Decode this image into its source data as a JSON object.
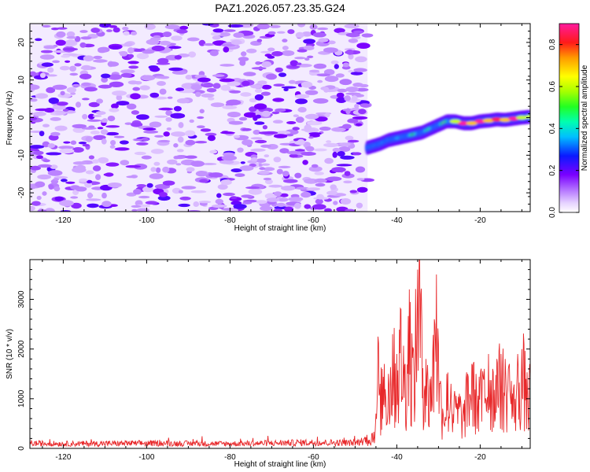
{
  "title": "PAZ1.2026.057.23.35.G24",
  "chart_data": [
    {
      "type": "heatmap",
      "title": "PAZ1.2026.057.23.35.G24",
      "xlabel": "Height of straight line (km)",
      "ylabel": "Frequency (Hz)",
      "xlim": [
        -128,
        -8
      ],
      "ylim": [
        -25,
        25
      ],
      "xticks": [
        -120,
        -100,
        -80,
        -60,
        -40,
        -20
      ],
      "yticks": [
        -20,
        -10,
        0,
        10,
        20
      ],
      "noise_region_km": [
        -128,
        -47
      ],
      "signal_track": {
        "x": [
          -47,
          -44,
          -42,
          -40,
          -38,
          -36,
          -34,
          -32,
          -30,
          -28,
          -26,
          -24,
          -22,
          -20,
          -18,
          -16,
          -14,
          -12,
          -10,
          -8
        ],
        "freq": [
          -8,
          -7,
          -6,
          -5.5,
          -5,
          -4.5,
          -4,
          -3,
          -2,
          -1,
          -1,
          -1.5,
          -1.5,
          -1,
          -0.8,
          -0.5,
          -0.6,
          -0.3,
          0,
          0.2
        ],
        "peak_amplitude": [
          0.25,
          0.3,
          0.4,
          0.35,
          0.45,
          0.5,
          0.5,
          0.45,
          0.5,
          0.55,
          0.6,
          0.95,
          0.7,
          0.9,
          0.7,
          0.85,
          0.7,
          0.9,
          0.6,
          0.6
        ]
      },
      "colorbar": {
        "label": "Normalized spectral amplitude",
        "range": [
          0,
          0.9
        ],
        "ticks": [
          "0.0",
          "0.2",
          "0.4",
          "0.6",
          "0.8"
        ]
      }
    },
    {
      "type": "line",
      "xlabel": "Height of straight line (km)",
      "ylabel": "SNR (10 * v/v)",
      "xlim": [
        -128,
        -8
      ],
      "ylim": [
        0,
        3800
      ],
      "xticks": [
        -120,
        -100,
        -80,
        -60,
        -40,
        -20
      ],
      "yticks": [
        0,
        1000,
        2000,
        3000
      ],
      "color": "#e8282a",
      "series": [
        {
          "name": "SNR",
          "x": [
            -128,
            -120,
            -100,
            -80,
            -60,
            -50,
            -48,
            -46,
            -45,
            -44.5,
            -44,
            -43.5,
            -43,
            -42,
            -41,
            -40,
            -39,
            -38,
            -37,
            -36,
            -35,
            -34.5,
            -34,
            -33,
            -32,
            -31,
            -30.5,
            -30,
            -29,
            -28,
            -27,
            -26,
            -25,
            -24,
            -23,
            -22,
            -21,
            -20,
            -19,
            -18,
            -17,
            -16,
            -15,
            -14,
            -13,
            -12,
            -11,
            -10,
            -9.5,
            -9,
            -8
          ],
          "values": [
            120,
            110,
            120,
            110,
            140,
            130,
            180,
            300,
            700,
            2250,
            1300,
            1600,
            1700,
            1500,
            2300,
            1900,
            2800,
            1700,
            3200,
            2000,
            3600,
            3800,
            2600,
            1800,
            1400,
            2600,
            3500,
            2100,
            800,
            1500,
            1300,
            1000,
            1100,
            900,
            1500,
            1700,
            1500,
            1400,
            1600,
            1900,
            1600,
            1800,
            1900,
            1800,
            1700,
            1200,
            1900,
            2000,
            2100,
            1400,
            1500
          ]
        }
      ]
    }
  ]
}
